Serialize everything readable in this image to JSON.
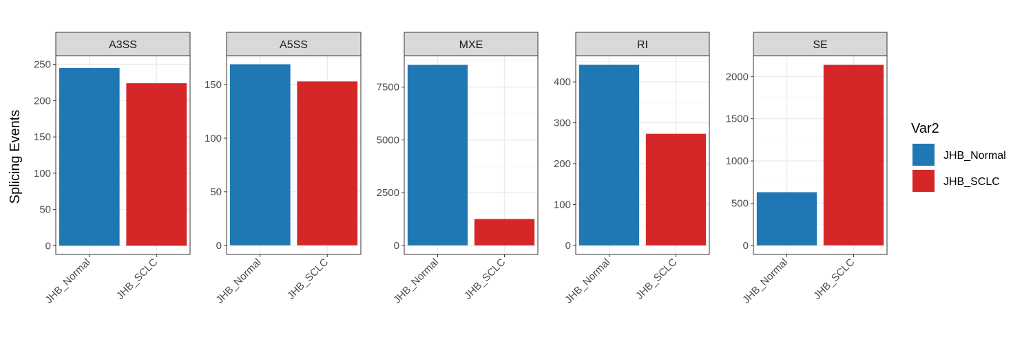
{
  "chart_data": {
    "type": "bar",
    "ylabel": "Splicing Events",
    "categories": [
      "JHB_Normal",
      "JHB_SCLC"
    ],
    "legend": {
      "title": "Var2",
      "placement": "right",
      "entries": [
        "JHB_Normal",
        "JHB_SCLC"
      ]
    },
    "colors": {
      "JHB_Normal": "#1f77b4",
      "JHB_SCLC": "#d62728"
    },
    "grid": true,
    "facets": [
      {
        "name": "A3SS",
        "values": [
          245,
          224
        ],
        "ylim": [
          -12,
          262
        ],
        "ticks": [
          0,
          50,
          100,
          150,
          200,
          250
        ]
      },
      {
        "name": "A5SS",
        "values": [
          169,
          153
        ],
        "ylim": [
          -8.5,
          177
        ],
        "ticks": [
          0,
          50,
          100,
          150
        ]
      },
      {
        "name": "MXE",
        "values": [
          8560,
          1250
        ],
        "ylim": [
          -428,
          8990
        ],
        "ticks": [
          0,
          2500,
          5000,
          7500
        ]
      },
      {
        "name": "RI",
        "values": [
          442,
          273
        ],
        "ylim": [
          -22,
          464
        ],
        "ticks": [
          0,
          100,
          200,
          300,
          400
        ]
      },
      {
        "name": "SE",
        "values": [
          630,
          2140
        ],
        "ylim": [
          -107,
          2247
        ],
        "ticks": [
          0,
          500,
          1000,
          1500,
          2000
        ]
      }
    ]
  }
}
